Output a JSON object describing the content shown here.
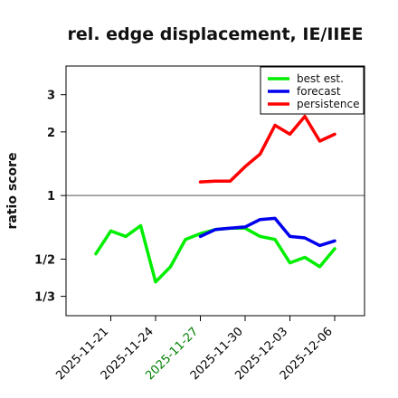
{
  "chart_data": {
    "type": "line",
    "title": "rel. edge displacement, IE/IIEE",
    "xlabel": "",
    "ylabel": "ratio score",
    "y_scale": "log",
    "y_ticks": [
      {
        "value": 0.3333,
        "label": "1/3"
      },
      {
        "value": 0.5,
        "label": "1/2"
      },
      {
        "value": 1,
        "label": "1"
      },
      {
        "value": 2,
        "label": "2"
      },
      {
        "value": 3,
        "label": "3"
      }
    ],
    "ylim": [
      0.27,
      4.1
    ],
    "reference_line": 1,
    "x_ticks": [
      {
        "date": "2025-11-21",
        "color": "#000000"
      },
      {
        "date": "2025-11-24",
        "color": "#000000"
      },
      {
        "date": "2025-11-27",
        "color": "#008000"
      },
      {
        "date": "2025-11-30",
        "color": "#000000"
      },
      {
        "date": "2025-12-03",
        "color": "#000000"
      },
      {
        "date": "2025-12-06",
        "color": "#000000"
      }
    ],
    "xlim": [
      "2025-11-18",
      "2025-12-08"
    ],
    "legend_position": "top-right",
    "series": [
      {
        "name": "best est.",
        "color": "#00ee00",
        "x": [
          "2025-11-20",
          "2025-11-21",
          "2025-11-22",
          "2025-11-23",
          "2025-11-24",
          "2025-11-25",
          "2025-11-26",
          "2025-11-27",
          "2025-11-28",
          "2025-11-29",
          "2025-11-30",
          "2025-12-01",
          "2025-12-02",
          "2025-12-03",
          "2025-12-04",
          "2025-12-05",
          "2025-12-06"
        ],
        "y": [
          0.53,
          0.68,
          0.64,
          0.72,
          0.39,
          0.46,
          0.62,
          0.66,
          0.69,
          0.7,
          0.7,
          0.64,
          0.62,
          0.48,
          0.51,
          0.46,
          0.56
        ]
      },
      {
        "name": "forecast",
        "color": "#0000ee",
        "x": [
          "2025-11-27",
          "2025-11-28",
          "2025-11-29",
          "2025-11-30",
          "2025-12-01",
          "2025-12-02",
          "2025-12-03",
          "2025-12-04",
          "2025-12-05",
          "2025-12-06"
        ],
        "y": [
          0.64,
          0.69,
          0.7,
          0.71,
          0.77,
          0.78,
          0.64,
          0.63,
          0.58,
          0.61
        ]
      },
      {
        "name": "persistence",
        "color": "#ff0000",
        "x": [
          "2025-11-27",
          "2025-11-28",
          "2025-11-29",
          "2025-11-30",
          "2025-12-01",
          "2025-12-02",
          "2025-12-03",
          "2025-12-04",
          "2025-12-05",
          "2025-12-06"
        ],
        "y": [
          1.16,
          1.17,
          1.17,
          1.37,
          1.57,
          2.15,
          1.95,
          2.37,
          1.81,
          1.95
        ]
      }
    ]
  }
}
